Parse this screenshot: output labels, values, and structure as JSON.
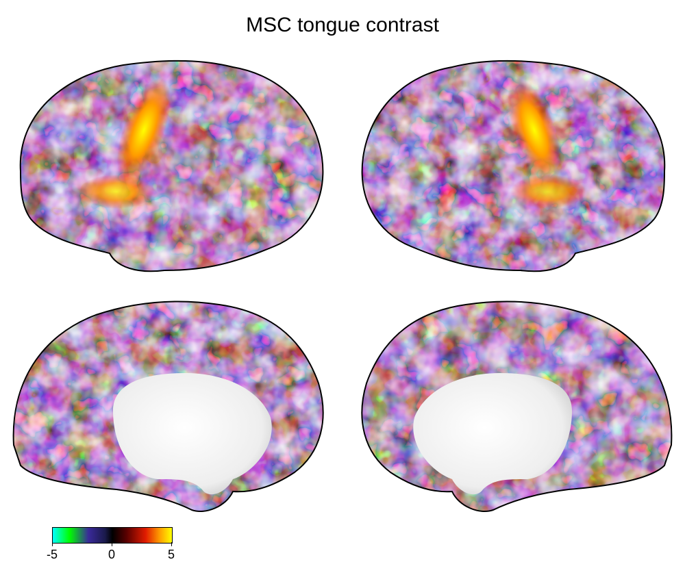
{
  "title": "MSC tongue contrast",
  "colorbar": {
    "ticks": [
      "-5",
      "0",
      "5"
    ],
    "colors": [
      "#00ffff",
      "#00ff00",
      "#3a2a9a",
      "#000000",
      "#e11c00",
      "#ffa000",
      "#ffff00"
    ]
  },
  "views": [
    "left-lateral",
    "right-lateral",
    "left-medial",
    "right-medial"
  ]
}
